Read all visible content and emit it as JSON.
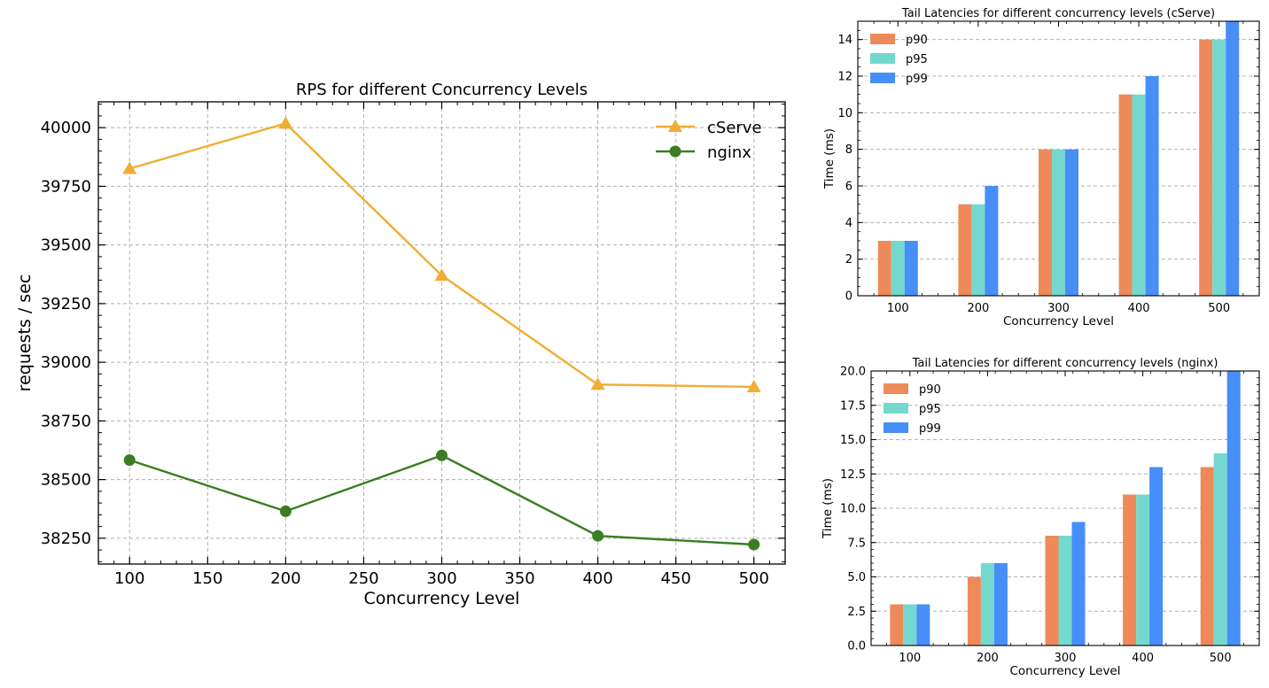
{
  "chart_data": [
    {
      "type": "line",
      "title": "RPS for different Concurrency Levels",
      "xlabel": "Concurrency Level",
      "ylabel": "requests / sec",
      "x": [
        100,
        200,
        300,
        400,
        500
      ],
      "xticks": [
        100,
        150,
        200,
        250,
        300,
        350,
        400,
        450,
        500
      ],
      "yticks": [
        38250,
        38500,
        38750,
        39000,
        39250,
        39500,
        39750,
        40000
      ],
      "xlim": [
        80,
        520
      ],
      "ylim": [
        38140,
        40110
      ],
      "grid": true,
      "legend_position": "top-right",
      "series": [
        {
          "name": "cServe",
          "marker": "triangle",
          "color": "#F0AD33",
          "values": [
            39825,
            40018,
            39370,
            38905,
            38895
          ]
        },
        {
          "name": "nginx",
          "marker": "circle",
          "color": "#3A7D22",
          "values": [
            38583,
            38365,
            38603,
            38260,
            38223
          ]
        }
      ]
    },
    {
      "type": "bar",
      "title": "Tail Latencies for different concurrency levels (cServe)",
      "xlabel": "Concurrency Level",
      "ylabel": "Time (ms)",
      "categories": [
        "100",
        "200",
        "300",
        "400",
        "500"
      ],
      "yticks": [
        "0",
        "2",
        "4",
        "6",
        "8",
        "10",
        "12",
        "14"
      ],
      "ylim": [
        0,
        15.0
      ],
      "grid": true,
      "legend_position": "top-left",
      "series": [
        {
          "name": "p90",
          "color": "#EE8A5A",
          "values": [
            3,
            5,
            8,
            11,
            14
          ]
        },
        {
          "name": "p95",
          "color": "#74D8CF",
          "values": [
            3,
            5,
            8,
            11,
            14
          ]
        },
        {
          "name": "p99",
          "color": "#478EF8",
          "values": [
            3,
            6,
            8,
            12,
            15
          ]
        }
      ]
    },
    {
      "type": "bar",
      "title": "Tail Latencies for different concurrency levels (nginx)",
      "xlabel": "Concurrency Level",
      "ylabel": "Time (ms)",
      "categories": [
        "100",
        "200",
        "300",
        "400",
        "500"
      ],
      "yticks": [
        "0.0",
        "2.5",
        "5.0",
        "7.5",
        "10.0",
        "12.5",
        "15.0",
        "17.5",
        "20.0"
      ],
      "ylim": [
        0,
        20.0
      ],
      "grid": true,
      "legend_position": "top-left",
      "series": [
        {
          "name": "p90",
          "color": "#EE8A5A",
          "values": [
            3,
            5,
            8,
            11,
            13
          ]
        },
        {
          "name": "p95",
          "color": "#74D8CF",
          "values": [
            3,
            6,
            8,
            11,
            14
          ]
        },
        {
          "name": "p99",
          "color": "#478EF8",
          "values": [
            3,
            6,
            9,
            13,
            20
          ]
        }
      ]
    }
  ]
}
